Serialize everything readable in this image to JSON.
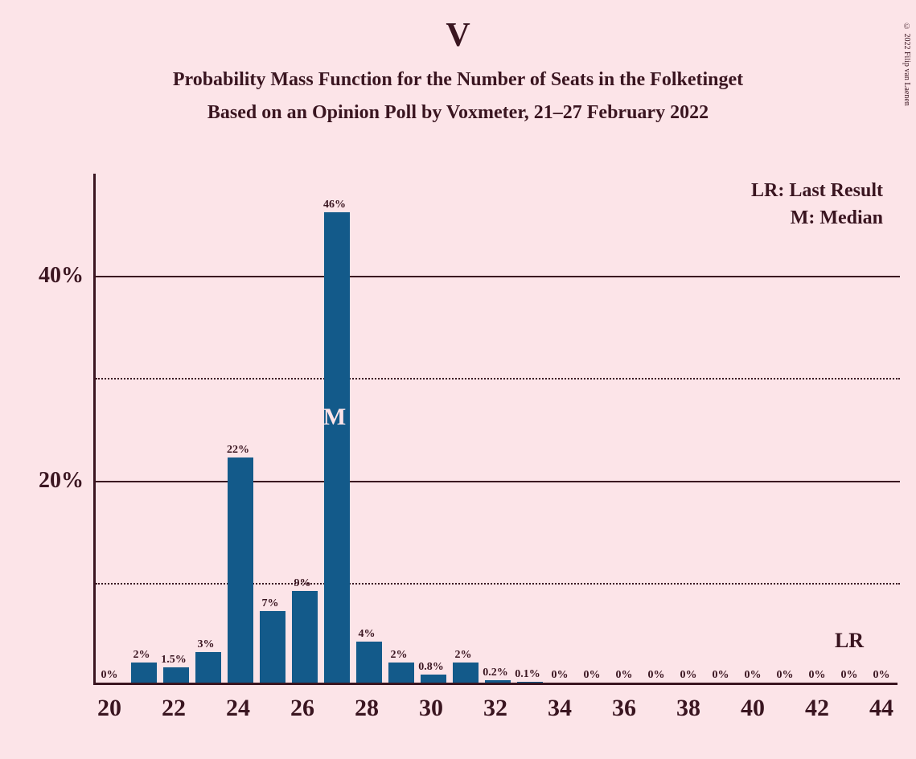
{
  "title": "V",
  "subtitle1": "Probability Mass Function for the Number of Seats in the Folketinget",
  "subtitle2": "Based on an Opinion Poll by Voxmeter, 21–27 February 2022",
  "copyright": "© 2022 Filip van Laenen",
  "legend_lr": "LR: Last Result",
  "legend_m": "M: Median",
  "lr_marker": "LR",
  "median_marker": "M",
  "chart": {
    "type": "bar",
    "bar_color": "#135a8a",
    "background_color": "#fce4e8",
    "text_color": "#3a1520",
    "ylim_max": 50,
    "y_major_ticks": [
      20,
      40
    ],
    "y_minor_ticks": [
      10,
      30
    ],
    "x_ticks": [
      20,
      22,
      24,
      26,
      28,
      30,
      32,
      34,
      36,
      38,
      40,
      42,
      44
    ],
    "x_min": 20,
    "x_max": 44,
    "bar_width_ratio": 0.82,
    "median_x": 27,
    "lr_x": 43,
    "bars": [
      {
        "x": 20,
        "v": 0,
        "label": "0%"
      },
      {
        "x": 21,
        "v": 2,
        "label": "2%"
      },
      {
        "x": 22,
        "v": 1.5,
        "label": "1.5%"
      },
      {
        "x": 23,
        "v": 3,
        "label": "3%"
      },
      {
        "x": 24,
        "v": 22,
        "label": "22%"
      },
      {
        "x": 25,
        "v": 7,
        "label": "7%"
      },
      {
        "x": 26,
        "v": 9,
        "label": "9%"
      },
      {
        "x": 27,
        "v": 46,
        "label": "46%"
      },
      {
        "x": 28,
        "v": 4,
        "label": "4%"
      },
      {
        "x": 29,
        "v": 2,
        "label": "2%"
      },
      {
        "x": 30,
        "v": 0.8,
        "label": "0.8%"
      },
      {
        "x": 31,
        "v": 2,
        "label": "2%"
      },
      {
        "x": 32,
        "v": 0.2,
        "label": "0.2%"
      },
      {
        "x": 33,
        "v": 0.1,
        "label": "0.1%"
      },
      {
        "x": 34,
        "v": 0,
        "label": "0%"
      },
      {
        "x": 35,
        "v": 0,
        "label": "0%"
      },
      {
        "x": 36,
        "v": 0,
        "label": "0%"
      },
      {
        "x": 37,
        "v": 0,
        "label": "0%"
      },
      {
        "x": 38,
        "v": 0,
        "label": "0%"
      },
      {
        "x": 39,
        "v": 0,
        "label": "0%"
      },
      {
        "x": 40,
        "v": 0,
        "label": "0%"
      },
      {
        "x": 41,
        "v": 0,
        "label": "0%"
      },
      {
        "x": 42,
        "v": 0,
        "label": "0%"
      },
      {
        "x": 43,
        "v": 0,
        "label": "0%"
      },
      {
        "x": 44,
        "v": 0,
        "label": "0%"
      }
    ]
  }
}
